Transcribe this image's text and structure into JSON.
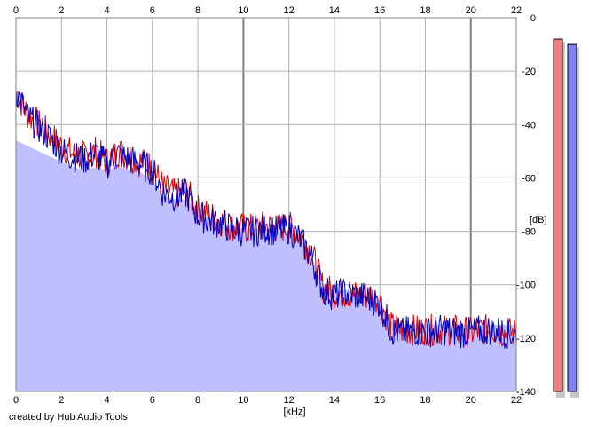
{
  "chart_data": {
    "type": "area",
    "xlabel": "[kHz]",
    "ylabel": "[dB]",
    "xlim": [
      0,
      22
    ],
    "ylim": [
      -140,
      0
    ],
    "x_ticks": [
      0,
      2,
      4,
      6,
      8,
      10,
      12,
      14,
      16,
      18,
      20,
      22
    ],
    "y_ticks": [
      0,
      -20,
      -40,
      -60,
      -80,
      -100,
      -120,
      -140
    ],
    "grid": true,
    "colors": {
      "left_channel": "#e00000",
      "right_channel": "#0000c0",
      "fill": "#c0c0ff",
      "level_meter_left": "#f08080",
      "level_meter_right": "#8080f0"
    },
    "series": [
      {
        "x": [
          0,
          0.5,
          1,
          1.5,
          2,
          2.5,
          3,
          3.5,
          4,
          4.5,
          5,
          5.5,
          6,
          6.5,
          7,
          7.5,
          8,
          8.5,
          9,
          9.5,
          10,
          10.5,
          11,
          11.5,
          12,
          12.5,
          13,
          13.5,
          14,
          14.5,
          15,
          15.5,
          16,
          16.5,
          17,
          17.5,
          18,
          18.5,
          19,
          19.5,
          20,
          20.5,
          21,
          21.5,
          22
        ],
        "values": [
          -28,
          -36,
          -40,
          -44,
          -48,
          -51,
          -52,
          -50,
          -54,
          -50,
          -52,
          -54,
          -56,
          -64,
          -66,
          -65,
          -72,
          -74,
          -76,
          -78,
          -79,
          -79,
          -78,
          -79,
          -78,
          -82,
          -88,
          -101,
          -103,
          -103,
          -104,
          -104,
          -106,
          -116,
          -117,
          -117,
          -117,
          -117,
          -117,
          -117,
          -118,
          -117,
          -117,
          -118,
          -118
        ]
      },
      {
        "x": [
          0,
          0.5,
          1,
          1.5,
          2,
          2.5,
          3,
          3.5,
          4,
          4.5,
          5,
          5.5,
          6,
          6.5,
          7,
          7.5,
          8,
          8.5,
          9,
          9.5,
          10,
          10.5,
          11,
          11.5,
          12,
          12.5,
          13,
          13.5,
          14,
          14.5,
          15,
          15.5,
          16,
          16.5,
          17,
          17.5,
          18,
          18.5,
          19,
          19.5,
          20,
          20.5,
          21,
          21.5,
          22
        ],
        "values": [
          -27,
          -37,
          -41,
          -45,
          -50,
          -52,
          -53,
          -51,
          -55,
          -51,
          -53,
          -55,
          -57,
          -66,
          -67,
          -66,
          -74,
          -76,
          -77,
          -79,
          -80,
          -80,
          -79,
          -80,
          -79,
          -83,
          -90,
          -102,
          -104,
          -103,
          -104,
          -105,
          -107,
          -117,
          -118,
          -117,
          -118,
          -117,
          -117,
          -118,
          -118,
          -117,
          -117,
          -118,
          -119
        ]
      }
    ],
    "fill_baseline_values": [
      -46,
      -48,
      -50,
      -52,
      -54,
      -56,
      -57,
      -56,
      -57,
      -56,
      -57,
      -58,
      -61,
      -67,
      -68,
      -68,
      -74,
      -75,
      -77,
      -78,
      -79,
      -79,
      -79,
      -80,
      -80,
      -83,
      -90,
      -100,
      -102,
      -102,
      -103,
      -104,
      -106,
      -114,
      -115,
      -115,
      -115,
      -115,
      -115,
      -115,
      -115,
      -115,
      -115,
      -115,
      -115
    ]
  },
  "footer": {
    "credit": "created by Hub Audio Tools"
  },
  "level_meters": {
    "left_level_db": -8,
    "right_level_db": -10
  }
}
